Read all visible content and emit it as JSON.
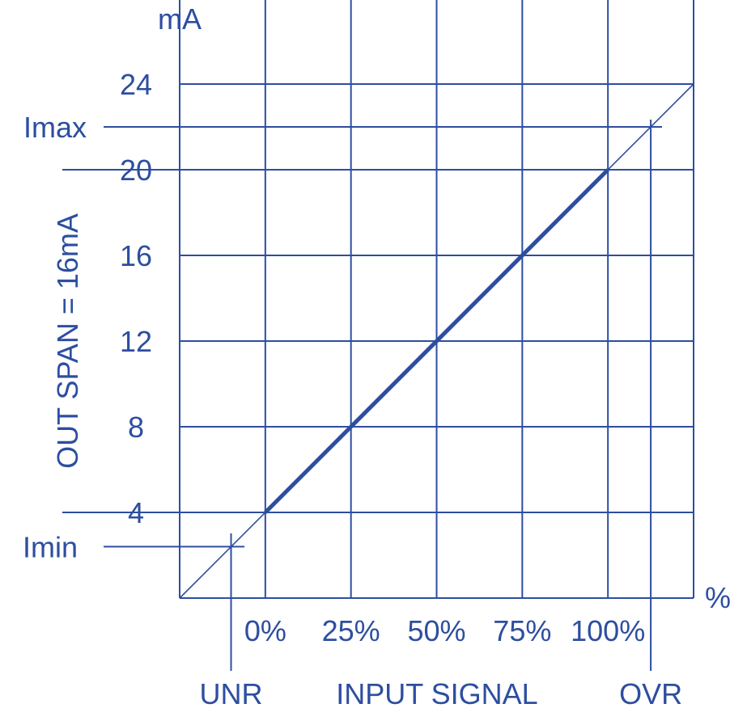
{
  "chart_data": {
    "type": "line",
    "xlabel": "INPUT SIGNAL",
    "ylabel": "OUT SPAN = 16mA",
    "x_unit": "%",
    "y_unit": "mA",
    "xlim": [
      -25,
      125
    ],
    "ylim": [
      0,
      26
    ],
    "grid": true,
    "y_ticks": [
      "4",
      "8",
      "12",
      "16",
      "20",
      "24"
    ],
    "x_ticks": [
      "0%",
      "25%",
      "50%",
      "75%",
      "100%"
    ],
    "series": [
      {
        "x": [
          -25,
          0,
          25,
          50,
          75,
          100,
          125
        ],
        "y": [
          0,
          4,
          8,
          12,
          16,
          20,
          24
        ]
      }
    ],
    "nominal_range": {
      "x": [
        0,
        100
      ],
      "y": [
        4,
        20
      ]
    },
    "limits": [
      {
        "label": "Imin",
        "value": 2.4,
        "x_label": "UNR"
      },
      {
        "label": "Imax",
        "value": 22.0,
        "x_label": "OVR"
      }
    ],
    "color": "#2d4ea0"
  }
}
